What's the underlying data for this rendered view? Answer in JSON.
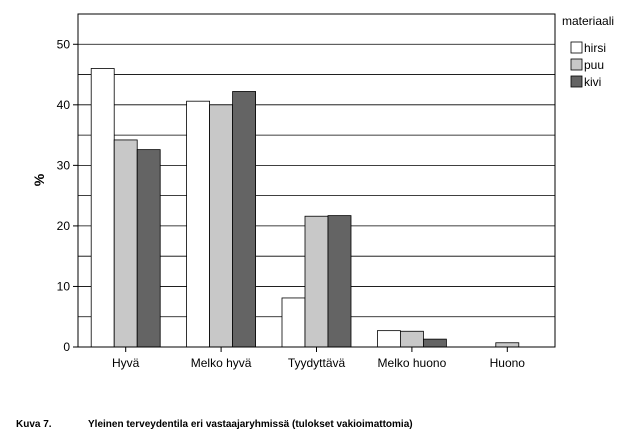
{
  "chart_data": {
    "type": "bar",
    "ylabel": "%",
    "ylim": [
      0,
      55
    ],
    "yticks": [
      0,
      10,
      20,
      30,
      40,
      50
    ],
    "grid": true,
    "legend_placement": "right",
    "legend_title": "materiaali",
    "categories": [
      "Hyvä",
      "Melko hyvä",
      "Tyydyttävä",
      "Melko huono",
      "Huono"
    ],
    "series": [
      {
        "name": "hirsi",
        "color": "#ffffff",
        "values": [
          46.0,
          40.6,
          8.1,
          2.7,
          0.0
        ]
      },
      {
        "name": "puu",
        "color": "#c8c8c8",
        "values": [
          34.2,
          40.0,
          21.6,
          2.6,
          0.7
        ]
      },
      {
        "name": "kivi",
        "color": "#646464",
        "values": [
          32.6,
          42.2,
          21.7,
          1.3,
          0.0
        ]
      }
    ]
  },
  "caption": {
    "number": "Kuva 7.",
    "text": "Yleinen terveydentila eri vastaajaryhmissä (tulokset vakioimattomia)"
  }
}
